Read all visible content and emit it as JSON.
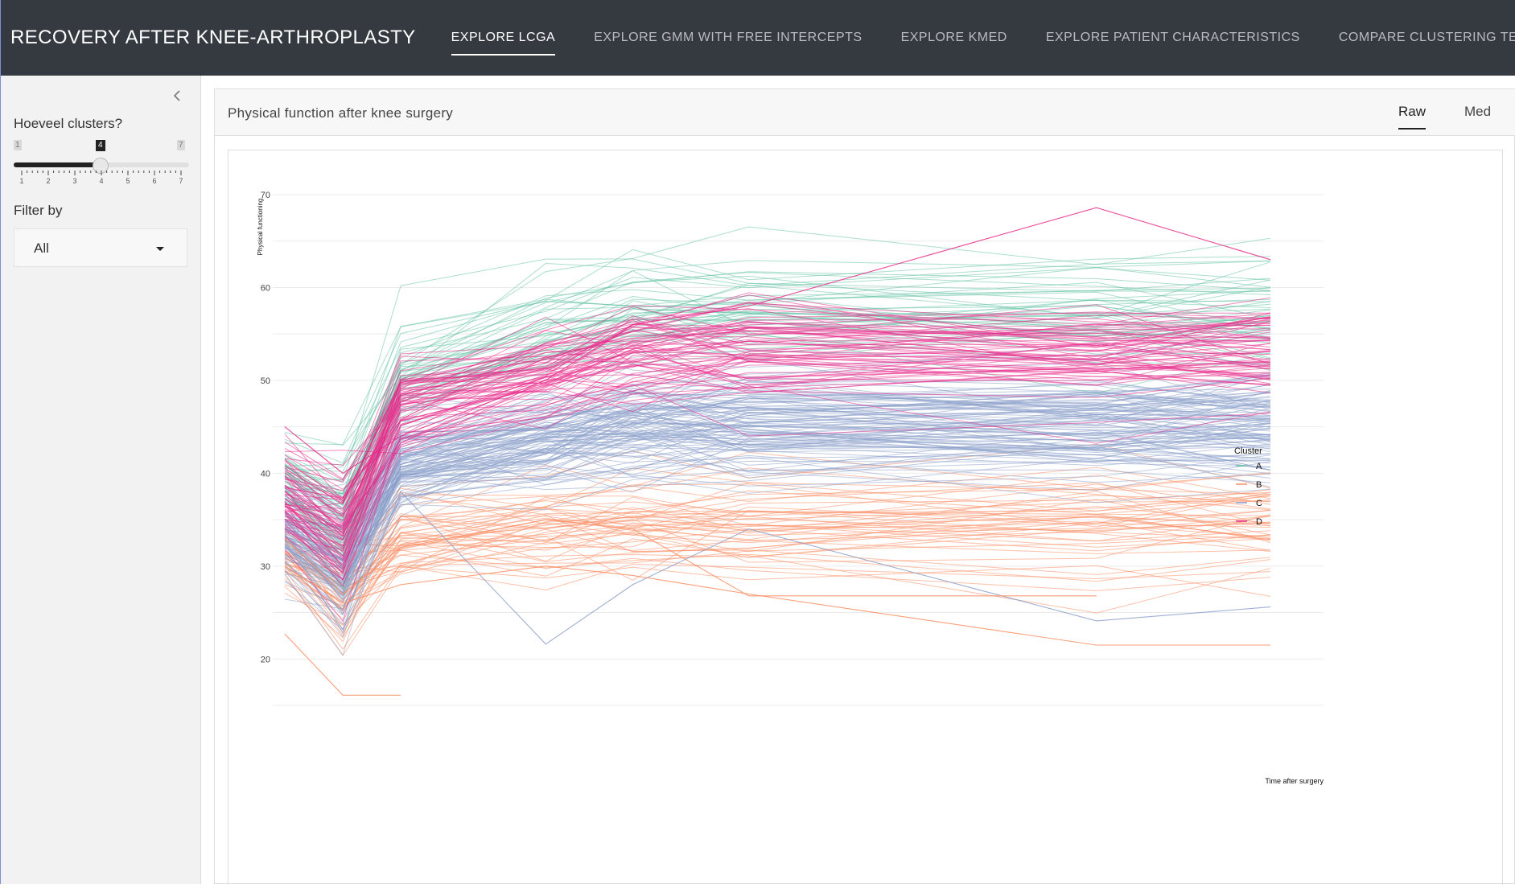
{
  "app": {
    "title": "RECOVERY AFTER KNEE-ARTHROPLASTY"
  },
  "nav": {
    "tabs": [
      {
        "label": "EXPLORE LCGA",
        "active": true
      },
      {
        "label": "EXPLORE GMM WITH FREE INTERCEPTS",
        "active": false
      },
      {
        "label": "EXPLORE KMED",
        "active": false
      },
      {
        "label": "EXPLORE PATIENT CHARACTERISTICS",
        "active": false
      },
      {
        "label": "COMPARE CLUSTERING TECHNIQUES",
        "active": false
      }
    ]
  },
  "sidebar": {
    "collapse_icon": "chevron-left-icon",
    "clusters_label": "Hoeveel clusters?",
    "slider": {
      "min": 1,
      "max": 7,
      "value": 4,
      "tick_labels": [
        "1",
        "2",
        "3",
        "4",
        "5",
        "6",
        "7"
      ]
    },
    "filter_label": "Filter by",
    "filter_value": "All",
    "filter_icon": "caret-down-icon"
  },
  "card": {
    "title": "Physical function after knee surgery",
    "pills": [
      {
        "label": "Raw",
        "active": true
      },
      {
        "label": "Med",
        "active": false
      }
    ]
  },
  "chart_data": {
    "type": "line",
    "ylabel": "Physical functioning",
    "xlabel": "Time after surgery",
    "ylim": [
      15,
      70
    ],
    "yticks": [
      20,
      30,
      40,
      50,
      60,
      70
    ],
    "x": [
      0,
      1,
      2,
      4.5,
      6,
      8,
      14,
      17
    ],
    "legend": {
      "title": "Cluster",
      "position": "right"
    },
    "series": [
      {
        "name": "A",
        "color": "#66c2a5",
        "approx_level": 57,
        "approx_baseline": 40
      },
      {
        "name": "B",
        "color": "#fc8d62",
        "approx_level": 35,
        "approx_baseline": 31
      },
      {
        "name": "C",
        "color": "#8da0cb",
        "approx_level": 45,
        "approx_baseline": 34
      },
      {
        "name": "D",
        "color": "#e7298a",
        "approx_level": 53,
        "approx_baseline": 38
      }
    ],
    "examples": [
      {
        "series": "B",
        "values": [
          22.7,
          16.1,
          16.1
        ]
      },
      {
        "series": "D",
        "values": [
          45,
          40,
          44,
          50,
          56,
          58,
          68.6,
          63
        ]
      },
      {
        "series": "C",
        "values": [
          35,
          30,
          38,
          21.6,
          28,
          34,
          24.1,
          25.6
        ]
      },
      {
        "series": "B",
        "values": [
          33,
          27,
          32,
          35,
          34,
          26.8,
          26.8
        ]
      },
      {
        "series": "B",
        "values": [
          30,
          26,
          28,
          30,
          29,
          27,
          21.5,
          21.5
        ]
      }
    ]
  }
}
